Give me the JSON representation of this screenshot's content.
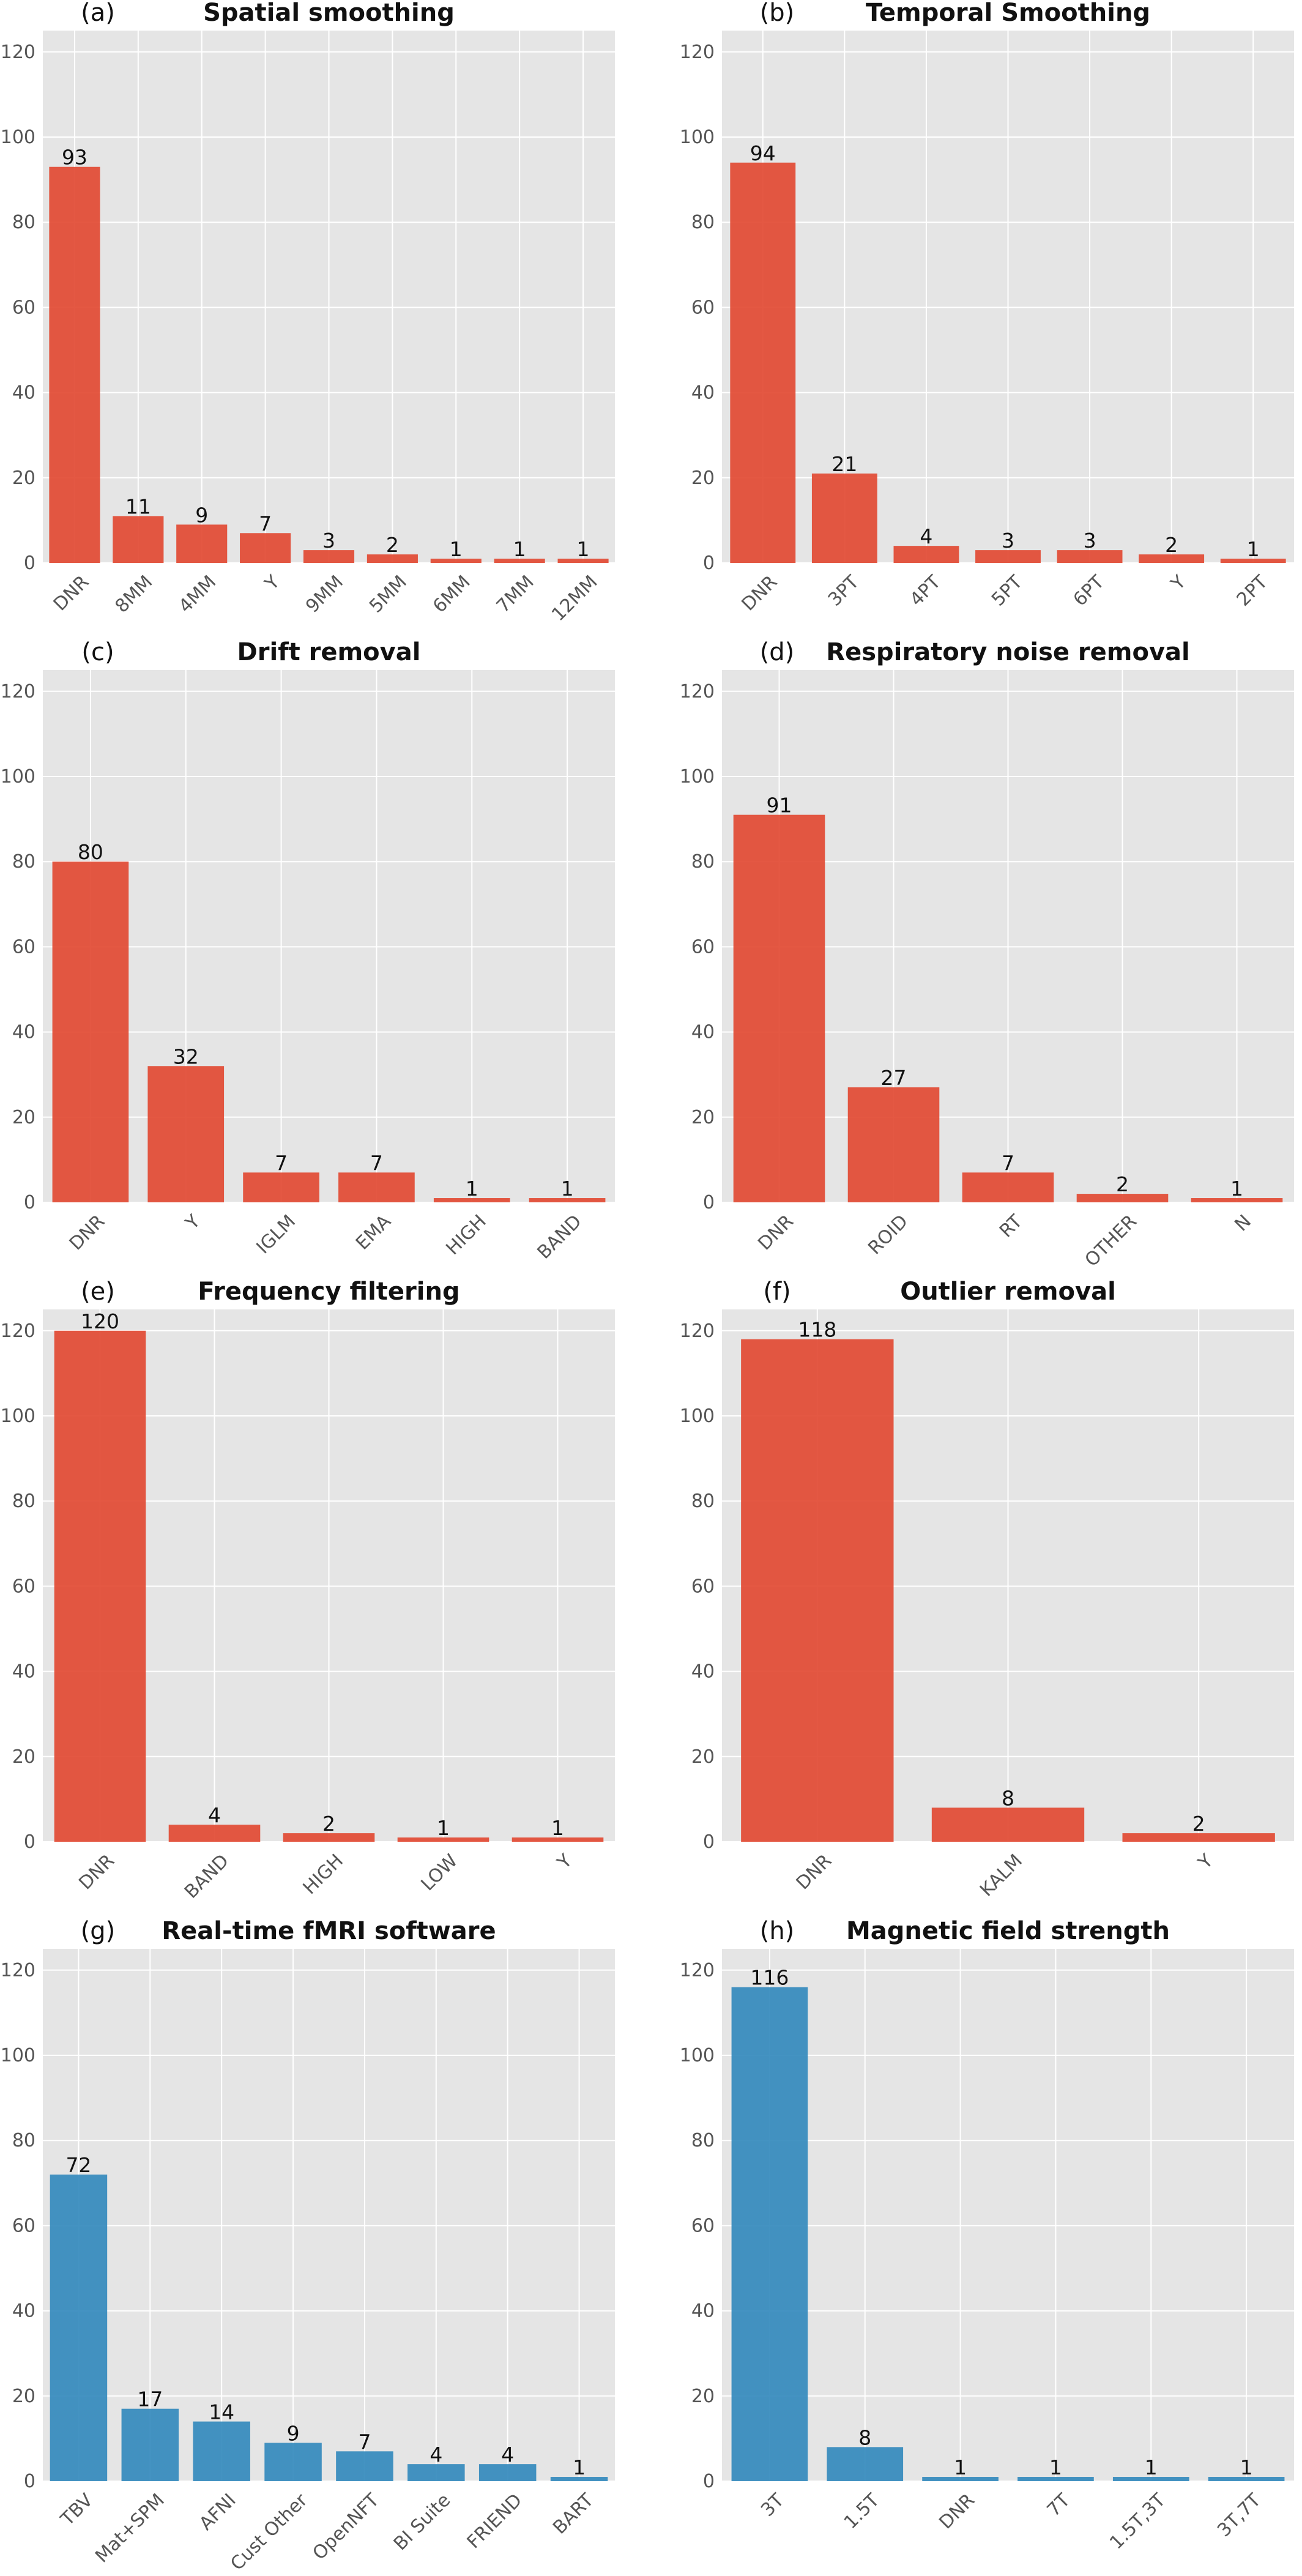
{
  "chart_data": [
    {
      "type": "bar",
      "panel_label": "(a)",
      "title": "Spatial smoothing",
      "categories": [
        "DNR",
        "8MM",
        "4MM",
        "Y",
        "9MM",
        "5MM",
        "6MM",
        "7MM",
        "12MM"
      ],
      "values": [
        93,
        11,
        9,
        7,
        3,
        2,
        1,
        1,
        1
      ],
      "color": "#E24A33",
      "ylim": [
        0,
        125
      ],
      "yticks": [
        0,
        20,
        40,
        60,
        80,
        100,
        120
      ],
      "grid": true,
      "xlabel": "",
      "ylabel": ""
    },
    {
      "type": "bar",
      "panel_label": "(b)",
      "title": "Temporal Smoothing",
      "categories": [
        "DNR",
        "3PT",
        "4PT",
        "5PT",
        "6PT",
        "Y",
        "2PT"
      ],
      "values": [
        94,
        21,
        4,
        3,
        3,
        2,
        1
      ],
      "color": "#E24A33",
      "ylim": [
        0,
        125
      ],
      "yticks": [
        0,
        20,
        40,
        60,
        80,
        100,
        120
      ],
      "grid": true,
      "xlabel": "",
      "ylabel": ""
    },
    {
      "type": "bar",
      "panel_label": "(c)",
      "title": "Drift removal",
      "categories": [
        "DNR",
        "Y",
        "IGLM",
        "EMA",
        "HIGH",
        "BAND"
      ],
      "values": [
        80,
        32,
        7,
        7,
        1,
        1
      ],
      "color": "#E24A33",
      "ylim": [
        0,
        125
      ],
      "yticks": [
        0,
        20,
        40,
        60,
        80,
        100,
        120
      ],
      "grid": true,
      "xlabel": "",
      "ylabel": ""
    },
    {
      "type": "bar",
      "panel_label": "(d)",
      "title": "Respiratory noise removal",
      "categories": [
        "DNR",
        "ROID",
        "RT",
        "OTHER",
        "N"
      ],
      "values": [
        91,
        27,
        7,
        2,
        1
      ],
      "color": "#E24A33",
      "ylim": [
        0,
        125
      ],
      "yticks": [
        0,
        20,
        40,
        60,
        80,
        100,
        120
      ],
      "grid": true,
      "xlabel": "",
      "ylabel": ""
    },
    {
      "type": "bar",
      "panel_label": "(e)",
      "title": "Frequency filtering",
      "categories": [
        "DNR",
        "BAND",
        "HIGH",
        "LOW",
        "Y"
      ],
      "values": [
        120,
        4,
        2,
        1,
        1
      ],
      "color": "#E24A33",
      "ylim": [
        0,
        125
      ],
      "yticks": [
        0,
        20,
        40,
        60,
        80,
        100,
        120
      ],
      "grid": true,
      "xlabel": "",
      "ylabel": ""
    },
    {
      "type": "bar",
      "panel_label": "(f)",
      "title": "Outlier removal",
      "categories": [
        "DNR",
        "KALM",
        "Y"
      ],
      "values": [
        118,
        8,
        2
      ],
      "color": "#E24A33",
      "ylim": [
        0,
        125
      ],
      "yticks": [
        0,
        20,
        40,
        60,
        80,
        100,
        120
      ],
      "grid": true,
      "xlabel": "",
      "ylabel": ""
    },
    {
      "type": "bar",
      "panel_label": "(g)",
      "title": "Real-time fMRI software",
      "categories": [
        "TBV",
        "Mat+SPM",
        "AFNI",
        "Cust Other",
        "OpenNFT",
        "BI Suite",
        "FRIEND",
        "BART"
      ],
      "values": [
        72,
        17,
        14,
        9,
        7,
        4,
        4,
        1
      ],
      "color": "#348ABD",
      "ylim": [
        0,
        125
      ],
      "yticks": [
        0,
        20,
        40,
        60,
        80,
        100,
        120
      ],
      "grid": true,
      "xlabel": "",
      "ylabel": ""
    },
    {
      "type": "bar",
      "panel_label": "(h)",
      "title": "Magnetic field strength",
      "categories": [
        "3T",
        "1.5T",
        "DNR",
        "7T",
        "1.5T,3T",
        "3T,7T"
      ],
      "values": [
        116,
        8,
        1,
        1,
        1,
        1
      ],
      "color": "#348ABD",
      "ylim": [
        0,
        125
      ],
      "yticks": [
        0,
        20,
        40,
        60,
        80,
        100,
        120
      ],
      "grid": true,
      "xlabel": "",
      "ylabel": ""
    }
  ],
  "style": {
    "plot_background": "#E5E5E5",
    "grid_color": "#FFFFFF",
    "tick_color": "#555555",
    "text_color": "#111111"
  }
}
